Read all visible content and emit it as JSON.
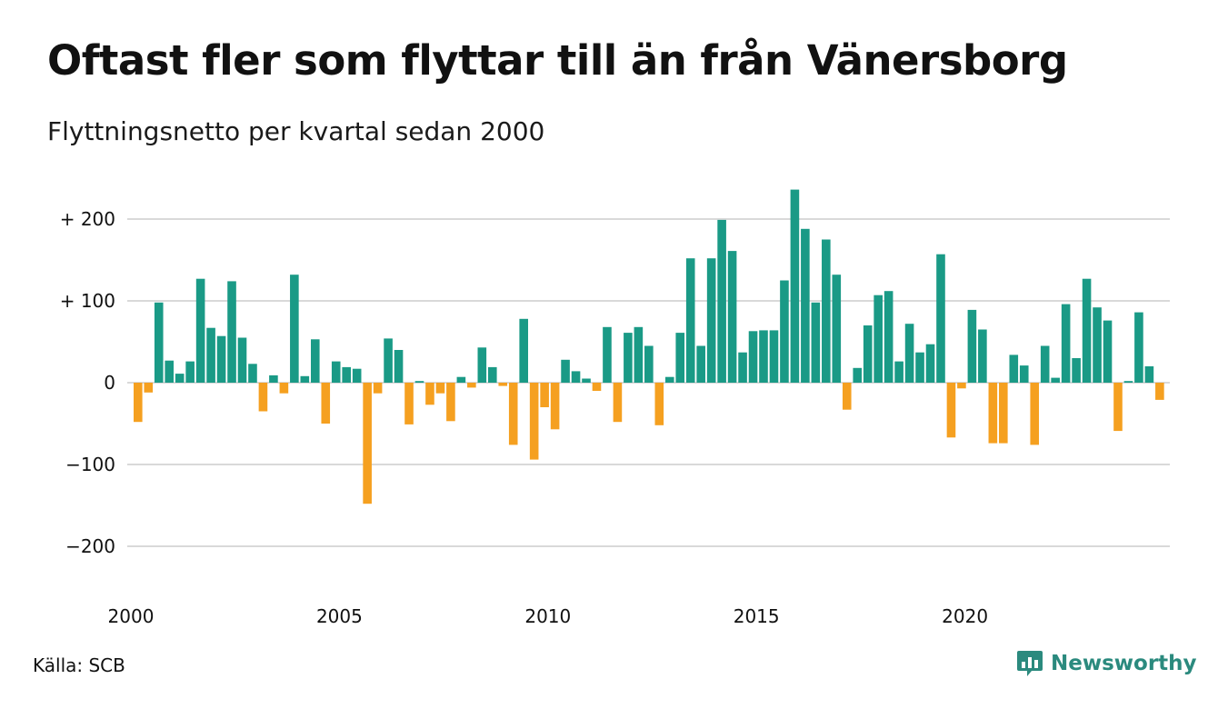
{
  "title": "Oftast fler som flyttar till än från Vänersborg",
  "subtitle": "Flyttningsnetto per kvartal sedan 2000",
  "source": "Källa: SCB",
  "brand": {
    "name": "Newsworthy",
    "logo_icon": "bar-chart-speech-bubble-icon"
  },
  "colors": {
    "positive": "#1a9a86",
    "negative": "#f5a020",
    "grid": "#d9d9d9",
    "brand": "#2b8a7e"
  },
  "chart_data": {
    "type": "bar",
    "title": "Oftast fler som flyttar till än från Vänersborg",
    "subtitle": "Flyttningsnetto per kvartal sedan 2000",
    "xlabel": "",
    "ylabel": "",
    "x_ticks": [
      "2000",
      "2005",
      "2010",
      "2015",
      "2020"
    ],
    "y_ticks": [
      {
        "value": 200,
        "label": "+ 200"
      },
      {
        "value": 100,
        "label": "+ 100"
      },
      {
        "value": 0,
        "label": "0"
      },
      {
        "value": -100,
        "label": "−100"
      },
      {
        "value": -200,
        "label": "−200"
      }
    ],
    "ylim": [
      -200,
      200
    ],
    "grid": true,
    "first_period": "2000 Q1",
    "period": "quarter",
    "values": [
      -48,
      -12,
      98,
      27,
      11,
      26,
      127,
      67,
      57,
      124,
      55,
      23,
      -35,
      9,
      -13,
      132,
      8,
      53,
      -50,
      26,
      19,
      17,
      -148,
      -13,
      54,
      40,
      -51,
      2,
      -27,
      -13,
      -47,
      7,
      -6,
      43,
      19,
      -4,
      -76,
      78,
      -94,
      -30,
      -57,
      28,
      14,
      5,
      -10,
      68,
      -48,
      61,
      68,
      45,
      -52,
      7,
      61,
      152,
      45,
      152,
      199,
      161,
      37,
      63,
      64,
      64,
      125,
      236,
      188,
      98,
      175,
      132,
      -33,
      18,
      70,
      107,
      112,
      26,
      72,
      37,
      47,
      157,
      -67,
      -7,
      89,
      65,
      -74,
      -74,
      34,
      21,
      -76,
      45,
      6,
      96,
      30,
      127,
      92,
      76,
      -59,
      2,
      86,
      20,
      -21
    ]
  }
}
